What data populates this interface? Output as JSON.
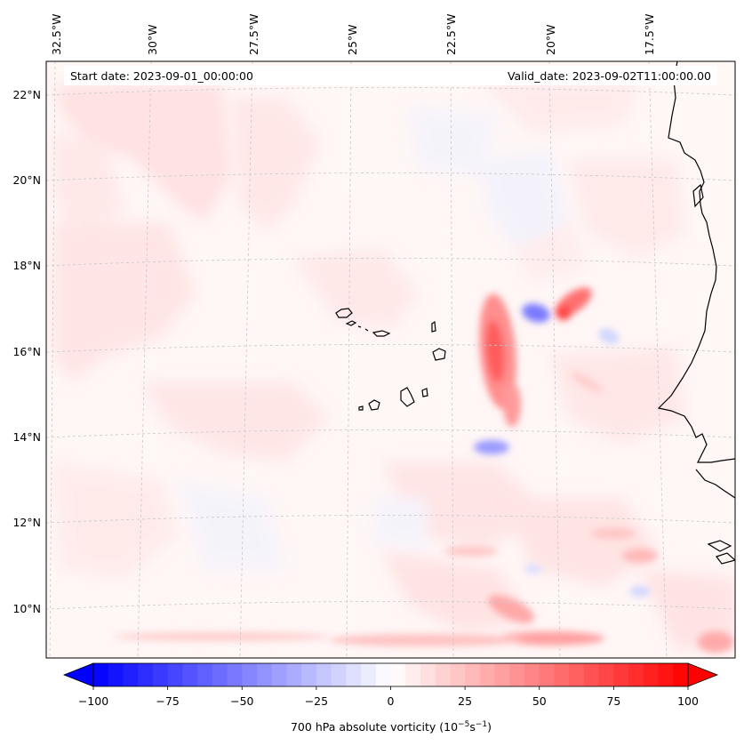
{
  "header": {
    "start_date": "Start date: 2023-09-01_00:00:00",
    "valid_date": "Valid_date: 2023-09-02T11:00:00.00"
  },
  "longitude_labels": [
    "32.5°W",
    "30°W",
    "27.5°W",
    "25°W",
    "22.5°W",
    "20°W",
    "17.5°W"
  ],
  "latitude_labels": [
    "22°N",
    "20°N",
    "18°N",
    "16°N",
    "14°N",
    "12°N",
    "10°N"
  ],
  "colorbar": {
    "ticks": [
      "−100",
      "−75",
      "−50",
      "−25",
      "0",
      "25",
      "50",
      "75",
      "100"
    ],
    "label_main": "700 hPa absolute vorticity (10",
    "label_exp1": "−5",
    "label_mid": "s",
    "label_exp2": "−1",
    "label_end": ")",
    "min": -100,
    "max": 100,
    "colors": {
      "negative": "#0000ff",
      "zero": "#ffffff",
      "positive": "#ff0000"
    }
  },
  "colors": {
    "coastline": "#000000",
    "grid": "#c8c8c8"
  }
}
